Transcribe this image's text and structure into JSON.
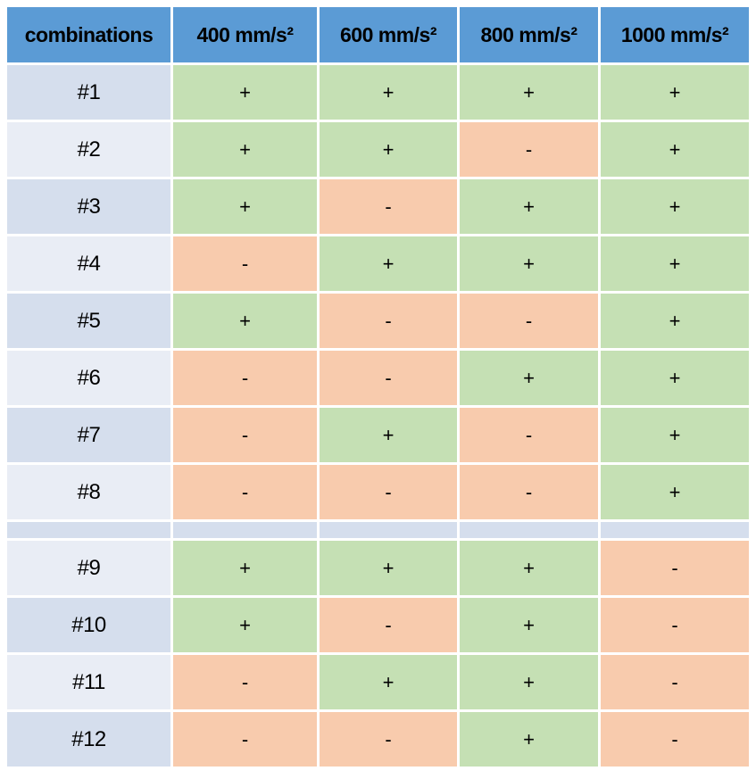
{
  "table": {
    "headers": [
      "combinations",
      "400 mm/s²",
      "600 mm/s²",
      "800 mm/s²",
      "1000 mm/s²"
    ],
    "positive_symbol": "+",
    "negative_symbol": "-",
    "sections": [
      {
        "rows": [
          {
            "label": "#1",
            "band": "dark",
            "values": [
              "+",
              "+",
              "+",
              "+"
            ]
          },
          {
            "label": "#2",
            "band": "light",
            "values": [
              "+",
              "+",
              "-",
              "+"
            ]
          },
          {
            "label": "#3",
            "band": "dark",
            "values": [
              "+",
              "-",
              "+",
              "+"
            ]
          },
          {
            "label": "#4",
            "band": "light",
            "values": [
              "-",
              "+",
              "+",
              "+"
            ]
          },
          {
            "label": "#5",
            "band": "dark",
            "values": [
              "+",
              "-",
              "-",
              "+"
            ]
          },
          {
            "label": "#6",
            "band": "light",
            "values": [
              "-",
              "-",
              "+",
              "+"
            ]
          },
          {
            "label": "#7",
            "band": "dark",
            "values": [
              "-",
              "+",
              "-",
              "+"
            ]
          },
          {
            "label": "#8",
            "band": "light",
            "values": [
              "-",
              "-",
              "-",
              "+"
            ]
          }
        ]
      },
      {
        "rows": [
          {
            "label": "#9",
            "band": "light",
            "values": [
              "+",
              "+",
              "+",
              "-"
            ]
          },
          {
            "label": "#10",
            "band": "dark",
            "values": [
              "+",
              "-",
              "+",
              "-"
            ]
          },
          {
            "label": "#11",
            "band": "light",
            "values": [
              "-",
              "+",
              "+",
              "-"
            ]
          },
          {
            "label": "#12",
            "band": "dark",
            "values": [
              "-",
              "-",
              "+",
              "-"
            ]
          }
        ]
      }
    ]
  },
  "colors": {
    "header_background": "#5B9BD5",
    "positive_cell": "#C5E0B4",
    "negative_cell": "#F8CBAD",
    "label_band_dark": "#D5DEED",
    "label_band_light": "#E9EDF5",
    "gap": "#FFFFFF",
    "text": "#000000"
  }
}
